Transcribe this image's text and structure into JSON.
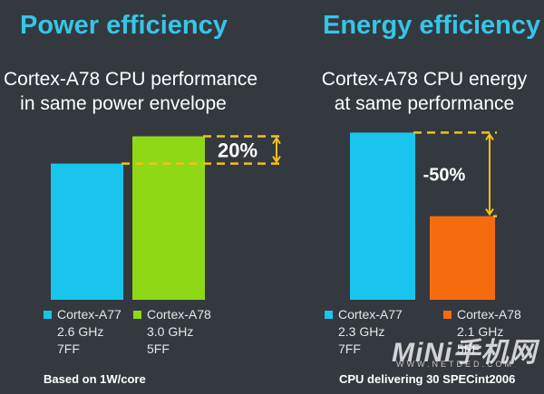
{
  "colors": {
    "background": "#34393f",
    "title": "#35c6e6",
    "a77": "#19c5ec",
    "a78_power": "#8fd816",
    "a78_energy": "#f56b10",
    "annotation": "#f3c01b"
  },
  "watermark": {
    "brand": "MiNi手机网",
    "url": "WWW.NETDED.COM"
  },
  "chart_data": [
    {
      "type": "bar",
      "title": "Power efficiency",
      "subtitle_line1": "Cortex-A78 CPU performance",
      "subtitle_line2": "in same power envelope",
      "categories": [
        "Cortex-A77",
        "Cortex-A78"
      ],
      "values": [
        100,
        120
      ],
      "ylim": [
        0,
        125
      ],
      "annotation": "20%",
      "legend": [
        {
          "name": "Cortex-A77",
          "freq": "2.6 GHz",
          "node": "7FF",
          "color": "#19c5ec"
        },
        {
          "name": "Cortex-A78",
          "freq": "3.0 GHz",
          "node": "5FF",
          "color": "#8fd816"
        }
      ],
      "footnote": "Based on 1W/core"
    },
    {
      "type": "bar",
      "title": "Energy efficiency",
      "subtitle_line1": "Cortex-A78 CPU energy",
      "subtitle_line2": "at same performance",
      "categories": [
        "Cortex-A77",
        "Cortex-A78"
      ],
      "values": [
        100,
        50
      ],
      "ylim": [
        0,
        104
      ],
      "annotation": "-50%",
      "legend": [
        {
          "name": "Cortex-A77",
          "freq": "2.3 GHz",
          "node": "7FF",
          "color": "#19c5ec"
        },
        {
          "name": "Cortex-A78",
          "freq": "2.1 GHz",
          "node": "5FF",
          "color": "#f56b10"
        }
      ],
      "footnote": "CPU delivering 30 SPECint2006"
    }
  ]
}
